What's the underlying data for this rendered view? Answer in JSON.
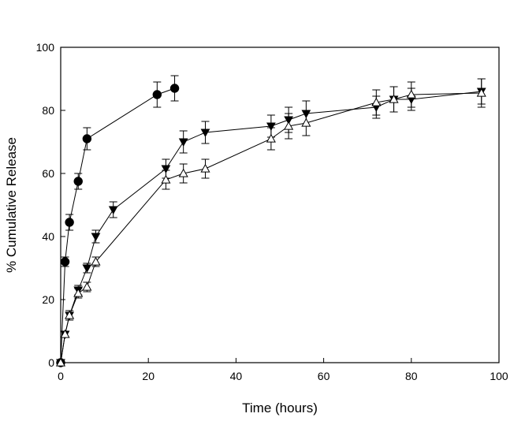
{
  "chart_data": {
    "type": "line",
    "title": "",
    "xlabel": "Time (hours)",
    "ylabel": "% Cumulative Release",
    "xlim": [
      0,
      100
    ],
    "ylim": [
      0,
      100
    ],
    "xticks": [
      0,
      20,
      40,
      60,
      80,
      100
    ],
    "yticks": [
      0,
      20,
      40,
      60,
      80,
      100
    ],
    "grid": false,
    "legend": "none",
    "series": [
      {
        "marker": "filled-circle",
        "x": [
          0,
          1,
          2,
          4,
          6,
          22,
          26
        ],
        "y": [
          0,
          32,
          44.5,
          57.5,
          71,
          85,
          87
        ],
        "err": [
          0,
          1.5,
          2.5,
          2.5,
          3.5,
          4,
          4
        ]
      },
      {
        "marker": "filled-triangle-down",
        "x": [
          0,
          1,
          2,
          4,
          6,
          8,
          12,
          24,
          28,
          33,
          48,
          52,
          56,
          72,
          76,
          80,
          96
        ],
        "y": [
          0,
          9,
          15,
          23,
          30,
          40,
          48.5,
          61.5,
          70,
          73,
          75,
          77,
          79,
          81,
          83.5,
          83.5,
          86
        ],
        "err": [
          0,
          1,
          1.5,
          1.5,
          1.5,
          2,
          2.5,
          3,
          3.5,
          3.5,
          3.5,
          4,
          4,
          3.5,
          4,
          3.5,
          4
        ]
      },
      {
        "marker": "open-triangle-up",
        "x": [
          0,
          1,
          2,
          4,
          6,
          8,
          24,
          28,
          33,
          48,
          52,
          56,
          72,
          76,
          80,
          96
        ],
        "y": [
          0,
          9,
          15,
          22,
          24,
          32,
          58,
          60,
          61.5,
          71,
          75,
          76,
          82.5,
          83.5,
          85,
          85.5
        ],
        "err": [
          0,
          1,
          1.5,
          1.5,
          1.5,
          1.5,
          3,
          3,
          3,
          3.5,
          4,
          4,
          4,
          4,
          4,
          4.5
        ]
      }
    ]
  }
}
